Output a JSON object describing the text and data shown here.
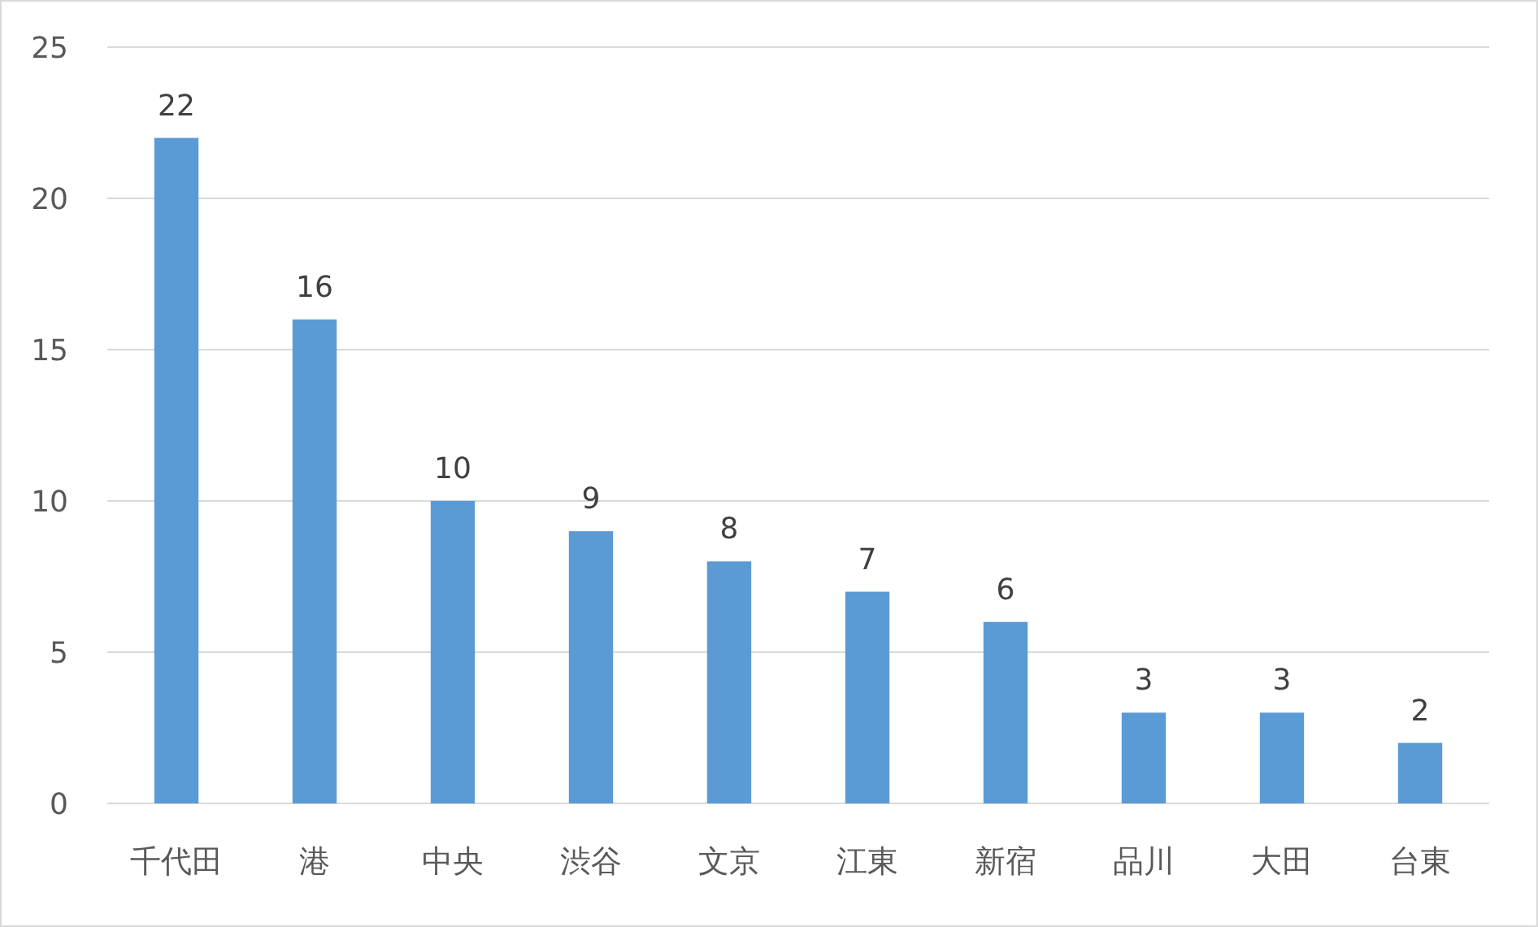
{
  "chart_data": {
    "type": "bar",
    "categories": [
      "千代田",
      "港",
      "中央",
      "渋谷",
      "文京",
      "江東",
      "新宿",
      "品川",
      "大田",
      "台東"
    ],
    "values": [
      22,
      16,
      10,
      9,
      8,
      7,
      6,
      3,
      3,
      2
    ],
    "color": "#5b9bd5",
    "ylim": [
      0,
      25
    ],
    "yticks": [
      0,
      5,
      10,
      15,
      20,
      25
    ],
    "grid": "y",
    "data_labels": true
  }
}
